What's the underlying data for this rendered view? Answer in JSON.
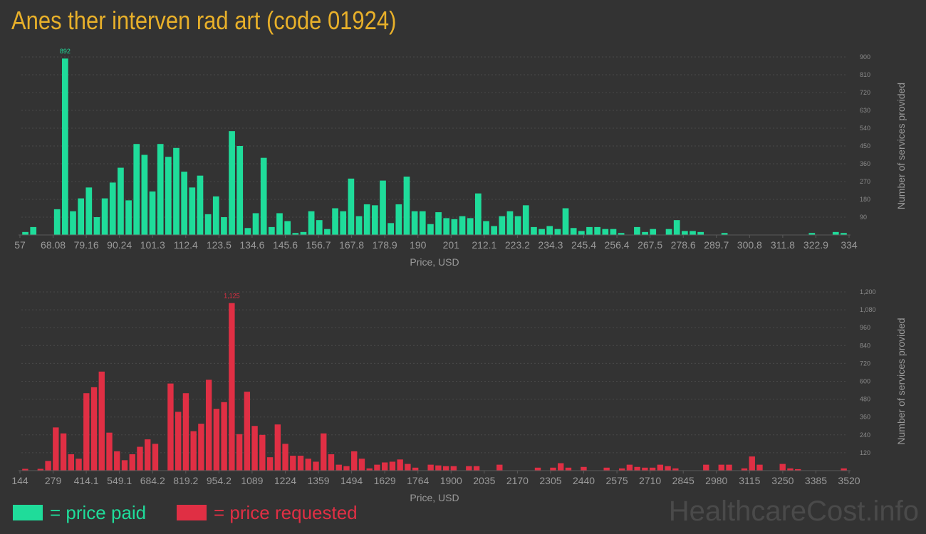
{
  "title": "Anes ther interven rad art (code 01924)",
  "watermark": "HealthcareCost.info",
  "colors": {
    "paid": "#1fdc9a",
    "requested": "#e02f44",
    "title": "#e8b02a",
    "axis": "#9a9a9a",
    "grid": "#4a4a4a"
  },
  "legend": {
    "paid_label": "= price paid",
    "requested_label": "= price requested"
  },
  "chart_data": [
    {
      "type": "bar",
      "xlabel": "Price, USD",
      "ylabel": "Number of services provided",
      "ylim": [
        0,
        900
      ],
      "yticks": [
        90,
        180,
        270,
        360,
        450,
        540,
        630,
        720,
        810,
        900
      ],
      "xtick_labels": [
        "57",
        "68.08",
        "79.16",
        "90.24",
        "101.3",
        "112.4",
        "123.5",
        "134.6",
        "145.6",
        "156.7",
        "167.8",
        "178.9",
        "190",
        "201",
        "212.1",
        "223.2",
        "234.3",
        "245.4",
        "256.4",
        "267.5",
        "278.6",
        "289.7",
        "300.8",
        "311.8",
        "322.9",
        "334"
      ],
      "peak_label": "892",
      "values": [
        15,
        40,
        0,
        0,
        130,
        892,
        120,
        185,
        240,
        90,
        185,
        265,
        340,
        175,
        460,
        405,
        220,
        460,
        395,
        440,
        320,
        240,
        300,
        105,
        195,
        90,
        525,
        450,
        35,
        110,
        390,
        40,
        110,
        70,
        10,
        15,
        120,
        75,
        30,
        135,
        120,
        285,
        95,
        155,
        150,
        275,
        60,
        155,
        295,
        120,
        120,
        55,
        115,
        85,
        80,
        95,
        85,
        210,
        70,
        45,
        95,
        120,
        95,
        150,
        40,
        30,
        45,
        30,
        135,
        35,
        20,
        40,
        40,
        30,
        30,
        10,
        0,
        40,
        15,
        30,
        0,
        30,
        75,
        20,
        20,
        15,
        0,
        0,
        10,
        0,
        0,
        0,
        0,
        0,
        0,
        0,
        0,
        0,
        0,
        10,
        0,
        0,
        15,
        10
      ],
      "series": [
        {
          "name": "price paid",
          "color": "#1fdc9a"
        }
      ]
    },
    {
      "type": "bar",
      "xlabel": "Price, USD",
      "ylabel": "Number of services provided",
      "ylim": [
        0,
        1200
      ],
      "yticks": [
        120,
        240,
        360,
        480,
        600,
        720,
        840,
        960,
        1080,
        1200
      ],
      "ytick_labels": [
        "120",
        "240",
        "360",
        "480",
        "600",
        "720",
        "840",
        "960",
        "1,080",
        "1,200"
      ],
      "xtick_labels": [
        "144",
        "279",
        "414.1",
        "549.1",
        "684.2",
        "819.2",
        "954.2",
        "1089",
        "1224",
        "1359",
        "1494",
        "1629",
        "1764",
        "1900",
        "2035",
        "2170",
        "2305",
        "2440",
        "2575",
        "2710",
        "2845",
        "2980",
        "3115",
        "3250",
        "3385",
        "3520"
      ],
      "peak_label": "1,125",
      "values": [
        12,
        0,
        12,
        65,
        290,
        250,
        110,
        80,
        520,
        560,
        665,
        255,
        130,
        70,
        110,
        160,
        210,
        180,
        0,
        585,
        395,
        520,
        265,
        315,
        610,
        415,
        460,
        1125,
        245,
        530,
        300,
        240,
        90,
        310,
        180,
        100,
        100,
        80,
        60,
        250,
        110,
        40,
        30,
        130,
        80,
        15,
        40,
        55,
        60,
        75,
        45,
        20,
        0,
        40,
        35,
        30,
        30,
        0,
        30,
        30,
        0,
        0,
        40,
        0,
        0,
        0,
        0,
        20,
        0,
        20,
        50,
        20,
        0,
        25,
        0,
        0,
        20,
        0,
        15,
        40,
        25,
        20,
        20,
        40,
        30,
        15,
        0,
        0,
        0,
        40,
        0,
        40,
        40,
        0,
        15,
        95,
        40,
        0,
        0,
        45,
        15,
        10,
        0,
        0,
        0,
        0,
        0,
        15
      ],
      "series": [
        {
          "name": "price requested",
          "color": "#e02f44"
        }
      ]
    }
  ]
}
